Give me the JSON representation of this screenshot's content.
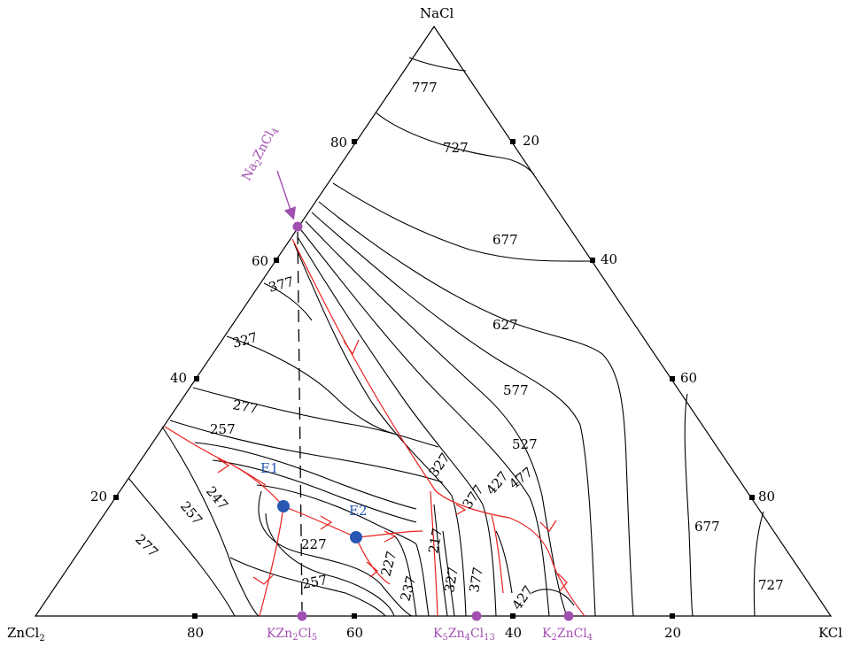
{
  "vertices": {
    "top": "NaCl",
    "left": "ZnCl",
    "left_sub": "2",
    "right": "KCl"
  },
  "ticks": {
    "left_edge": [
      "80",
      "60",
      "40",
      "20"
    ],
    "right_edge": [
      "20",
      "40",
      "60",
      "80"
    ],
    "bottom_edge": [
      "80",
      "60",
      "40",
      "20"
    ]
  },
  "isotherms": [
    "777",
    "727",
    "677",
    "627",
    "577",
    "527",
    "477",
    "427",
    "377",
    "327",
    "377",
    "327",
    "277",
    "257",
    "247",
    "257",
    "277",
    "227",
    "227",
    "237",
    "257",
    "217",
    "327",
    "377",
    "427",
    "677",
    "727"
  ],
  "compounds": {
    "na2zncl4": [
      "Na",
      "2",
      "ZnCl",
      "4"
    ],
    "kzn2cl5": [
      "KZn",
      "2",
      "Cl",
      "5"
    ],
    "k5zn4cl13": [
      "K",
      "5",
      "Zn",
      "4",
      "Cl",
      "13"
    ],
    "k2zncl4": [
      "K",
      "2",
      "ZnCl",
      "4"
    ]
  },
  "eutectics": [
    "E1",
    "E2"
  ],
  "colors": {
    "boundary": "#e8201c",
    "compound": "#a14fb0",
    "eutectic": "#2757b3",
    "line": "#000000"
  }
}
